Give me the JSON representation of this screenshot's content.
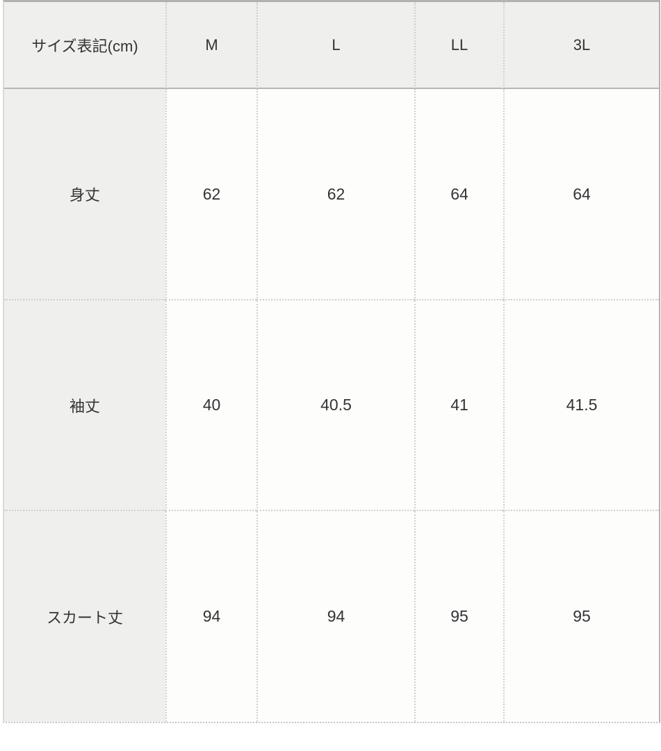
{
  "table": {
    "header": {
      "label": "サイズ表記(cm)",
      "sizes": [
        "M",
        "L",
        "LL",
        "3L"
      ]
    },
    "rows": [
      {
        "label": "身丈",
        "values": [
          "62",
          "62",
          "64",
          "64"
        ]
      },
      {
        "label": "袖丈",
        "values": [
          "40",
          "40.5",
          "41",
          "41.5"
        ]
      },
      {
        "label": "スカート丈",
        "values": [
          "94",
          "94",
          "95",
          "95"
        ]
      }
    ],
    "colors": {
      "header_background": "#efefed",
      "cell_background": "#fdfdfc",
      "solid_border": "#b3b2b1",
      "dotted_border": "#cfcfcd",
      "text": "#333333"
    }
  },
  "chart_data": {
    "type": "table",
    "title": "サイズ表記(cm)",
    "columns": [
      "サイズ表記(cm)",
      "M",
      "L",
      "LL",
      "3L"
    ],
    "row_labels": [
      "身丈",
      "袖丈",
      "スカート丈"
    ],
    "rows": [
      [
        "身丈",
        62,
        62,
        64,
        64
      ],
      [
        "袖丈",
        40,
        40.5,
        41,
        41.5
      ],
      [
        "スカート丈",
        94,
        94,
        95,
        95
      ]
    ],
    "units": "cm",
    "layout": "header row gray, label column gray, dotted inner gridlines, solid line under header"
  }
}
